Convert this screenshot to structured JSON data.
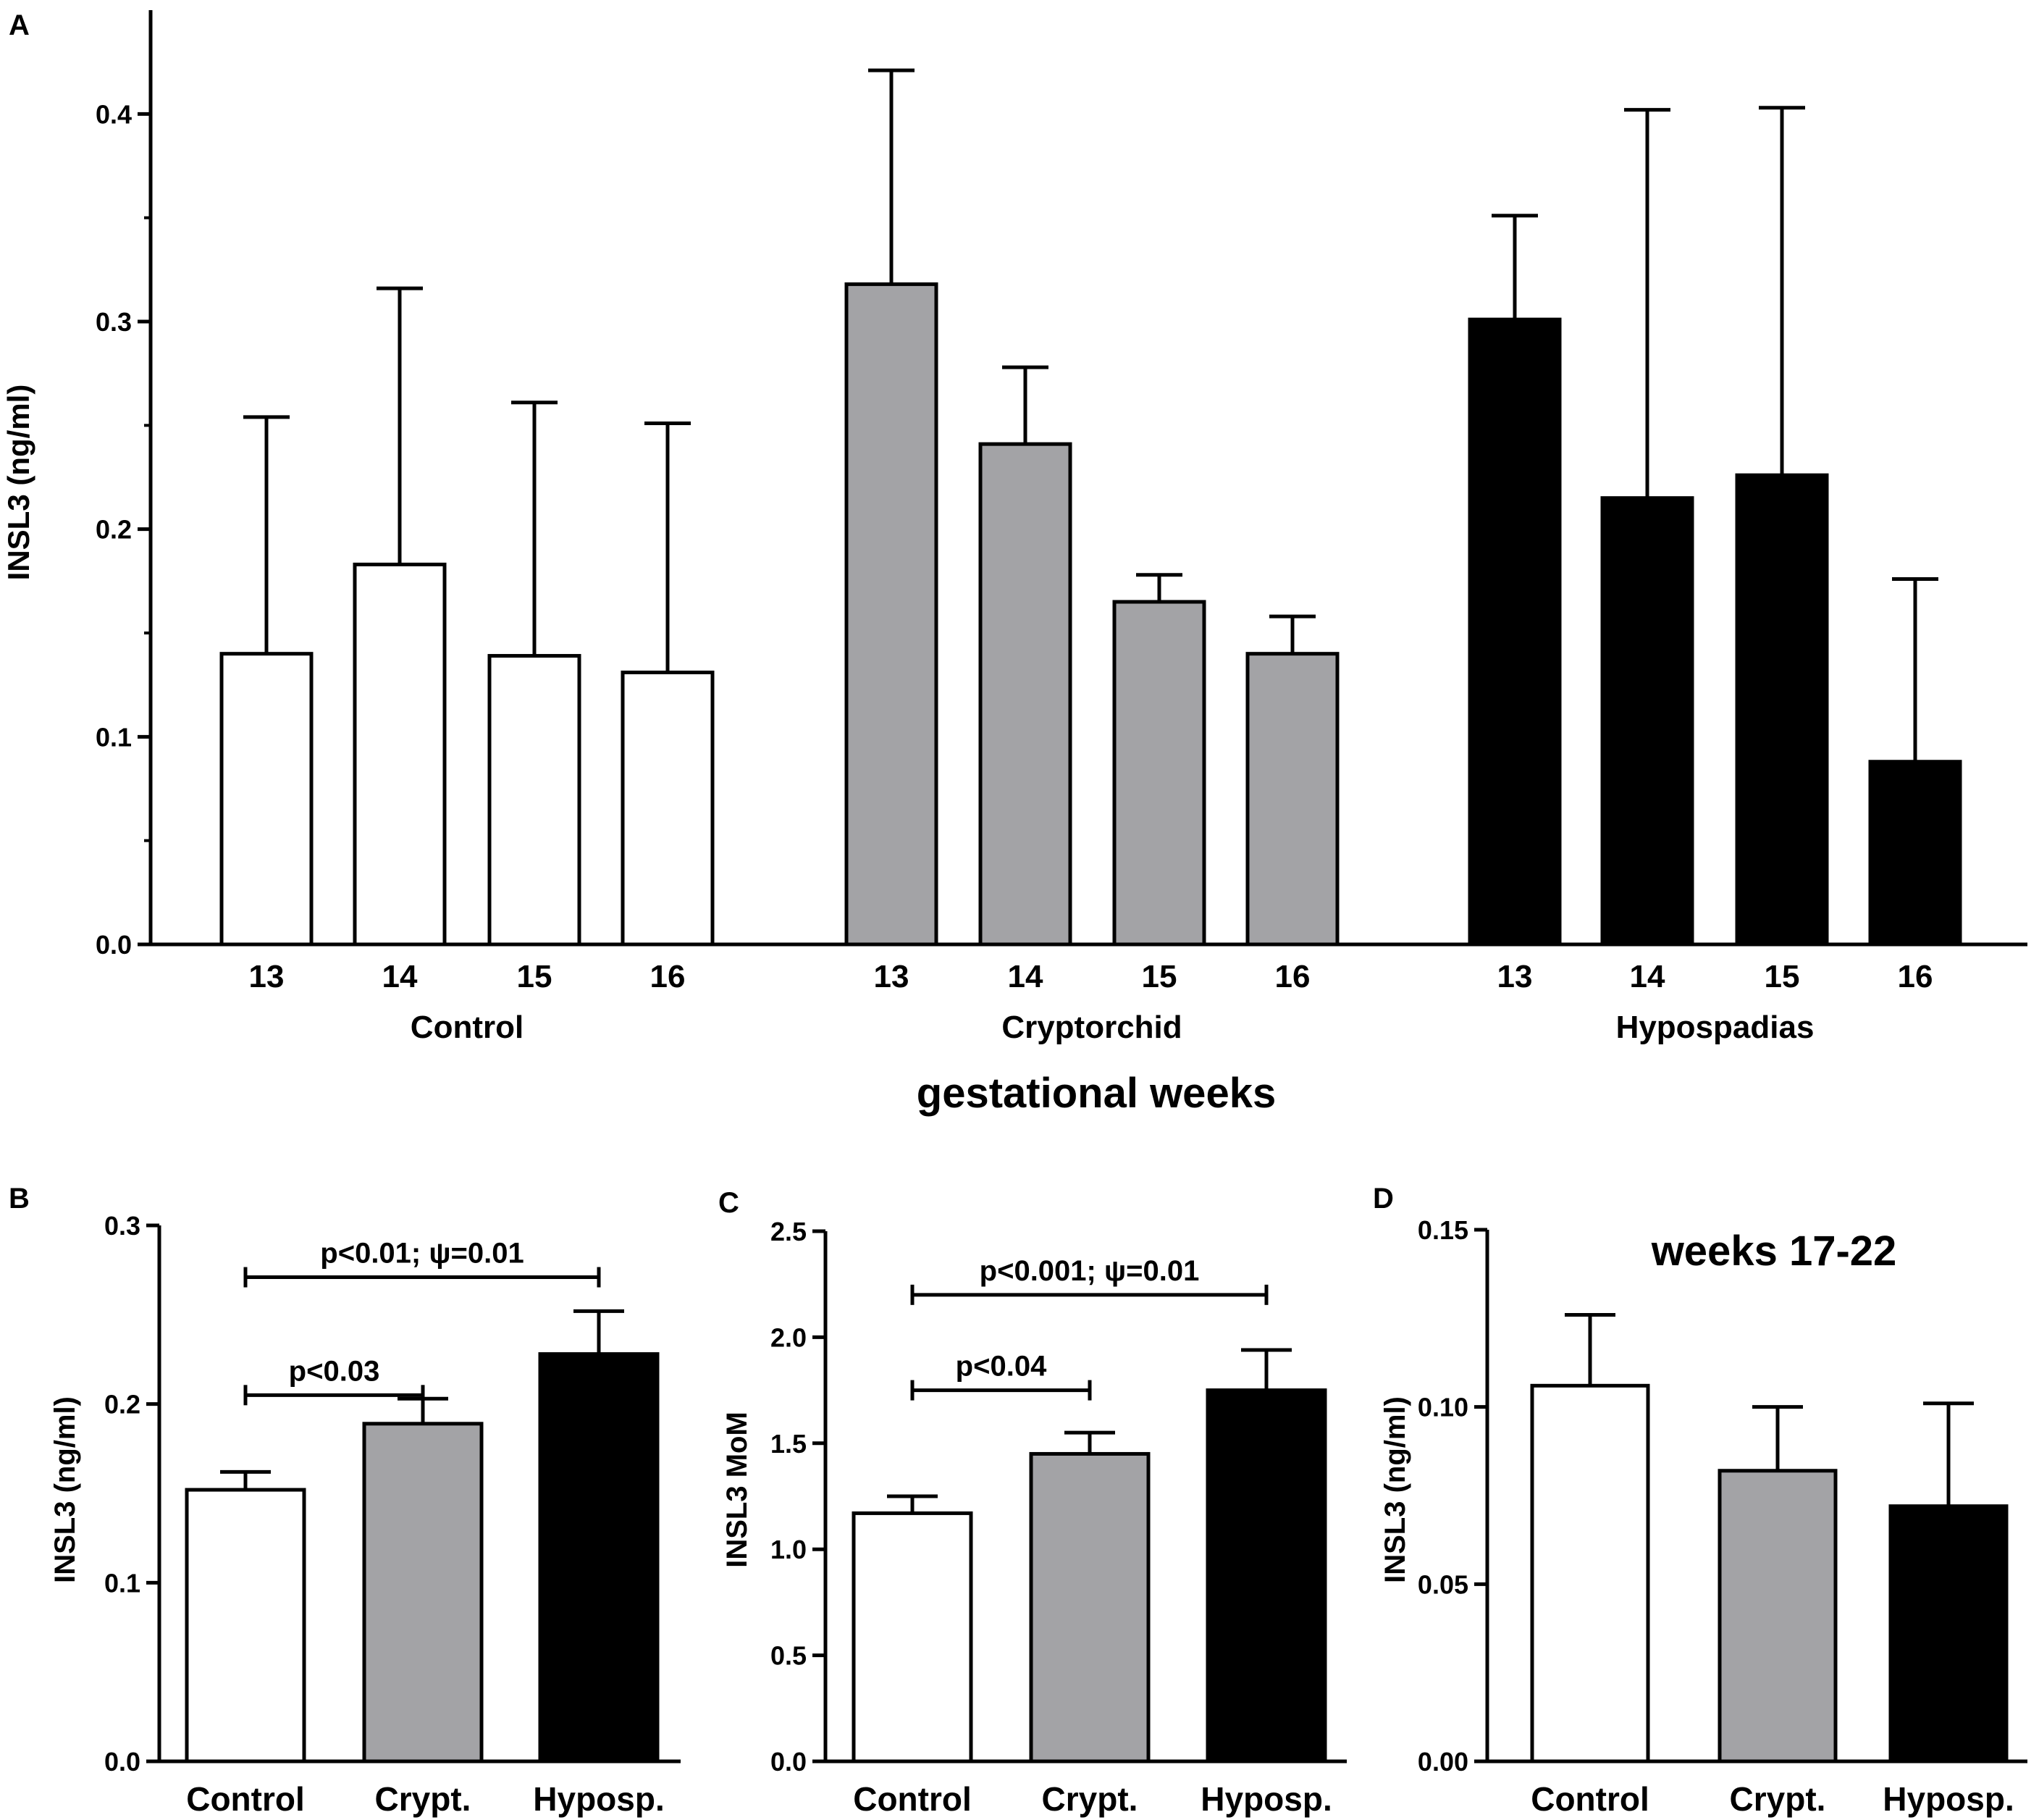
{
  "chart_data": [
    {
      "panel": "A",
      "type": "bar",
      "ylabel": "INSL3 (ng/ml)",
      "xlabel": "gestational weeks",
      "ylim": [
        0,
        0.45
      ],
      "yticks": [
        "0.0",
        "0.1",
        "0.2",
        "0.3",
        "0.4"
      ],
      "groups": [
        {
          "name": "Control",
          "color": "#ffffff",
          "categories": [
            "13",
            "14",
            "15",
            "16"
          ],
          "values": [
            0.14,
            0.183,
            0.139,
            0.131
          ],
          "errors": [
            0.114,
            0.133,
            0.122,
            0.12
          ]
        },
        {
          "name": "Cryptorchid",
          "color": "#a3a3a6",
          "categories": [
            "13",
            "14",
            "15",
            "16"
          ],
          "values": [
            0.318,
            0.241,
            0.165,
            0.14
          ],
          "errors": [
            0.103,
            0.037,
            0.013,
            0.018
          ]
        },
        {
          "name": "Hypospadias",
          "color": "#000000",
          "categories": [
            "13",
            "14",
            "15",
            "16"
          ],
          "values": [
            0.301,
            0.215,
            0.226,
            0.088
          ],
          "errors": [
            0.05,
            0.187,
            0.177,
            0.088
          ]
        }
      ]
    },
    {
      "panel": "B",
      "type": "bar",
      "ylabel": "INSL3 (ng/ml)",
      "ylim": [
        0,
        0.3
      ],
      "yticks": [
        "0.0",
        "0.1",
        "0.2",
        "0.3"
      ],
      "categories": [
        "Control",
        "Crypt.",
        "Hyposp."
      ],
      "colors": [
        "#ffffff",
        "#a3a3a6",
        "#000000"
      ],
      "values": [
        0.152,
        0.189,
        0.228
      ],
      "errors": [
        0.01,
        0.014,
        0.024
      ],
      "annotations": [
        {
          "text": "p<0.03",
          "from": 0,
          "to": 1,
          "level": 0.205
        },
        {
          "text": "p<0.01; ψ=0.01",
          "from": 0,
          "to": 2,
          "level": 0.271
        }
      ]
    },
    {
      "panel": "C",
      "type": "bar",
      "ylabel": "INSL3 MoM",
      "ylim": [
        0,
        2.5
      ],
      "yticks": [
        "0.0",
        "0.5",
        "1.0",
        "1.5",
        "2.0",
        "2.5"
      ],
      "categories": [
        "Control",
        "Crypt.",
        "Hyposp."
      ],
      "colors": [
        "#ffffff",
        "#a3a3a6",
        "#000000"
      ],
      "values": [
        1.17,
        1.45,
        1.75
      ],
      "errors": [
        0.08,
        0.1,
        0.19
      ],
      "annotations": [
        {
          "text": "p<0.04",
          "from": 0,
          "to": 1,
          "level": 1.75
        },
        {
          "text": "p<0.001; ψ=0.01",
          "from": 0,
          "to": 2,
          "level": 2.2
        }
      ]
    },
    {
      "panel": "D",
      "type": "bar",
      "title": "weeks 17-22",
      "ylabel": "INSL3 (ng/ml)",
      "ylim": [
        0,
        0.15
      ],
      "yticks": [
        "0.00",
        "0.05",
        "0.10",
        "0.15"
      ],
      "categories": [
        "Control",
        "Crypt.",
        "Hyposp."
      ],
      "colors": [
        "#ffffff",
        "#a3a3a6",
        "#000000"
      ],
      "values": [
        0.106,
        0.082,
        0.072
      ],
      "errors": [
        0.02,
        0.018,
        0.029
      ]
    }
  ]
}
